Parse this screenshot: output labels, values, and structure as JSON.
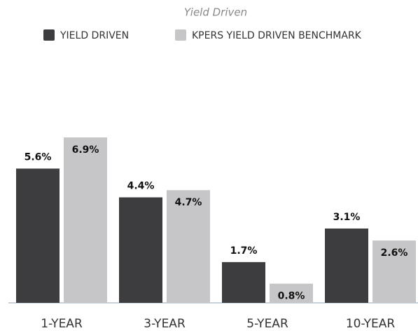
{
  "chart_data": {
    "type": "bar",
    "title": "Yield Driven",
    "categories": [
      "1-YEAR",
      "3-YEAR",
      "5-YEAR",
      "10-YEAR"
    ],
    "series": [
      {
        "name": "YIELD DRIVEN",
        "color": "#3d3c3e",
        "values": [
          5.6,
          4.4,
          1.7,
          3.1
        ],
        "value_labels": [
          "5.6%",
          "4.4%",
          "1.7%",
          "3.1%"
        ]
      },
      {
        "name": "KPERS YIELD DRIVEN BENCHMARK",
        "color": "#c6c6c8",
        "values": [
          6.9,
          4.7,
          0.8,
          2.6
        ],
        "value_labels": [
          "6.9%",
          "4.7%",
          "0.8%",
          "2.6%"
        ]
      }
    ]
  }
}
